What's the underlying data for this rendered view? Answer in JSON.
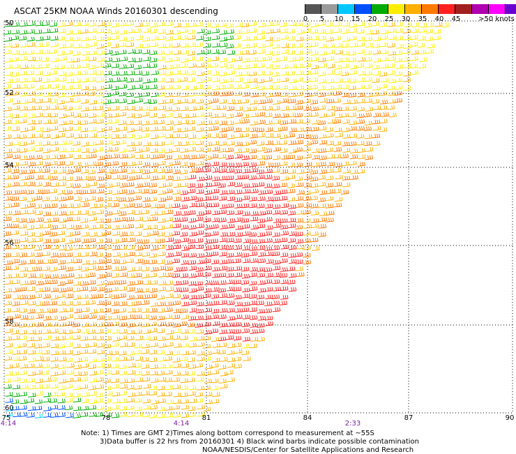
{
  "title": "ASCAT 25KM NOAA Winds 20160301 descending",
  "legend": {
    "labels": [
      "0",
      "5",
      "10",
      "15",
      "20",
      "25",
      "30",
      "35",
      "40",
      "45",
      ">50 knots"
    ],
    "colors": [
      "#555555",
      "#9a9a9a",
      "#00c8ff",
      "#0050ff",
      "#00aa00",
      "#ffee00",
      "#ffb000",
      "#ff7a00",
      "#ff2020",
      "#a02020",
      "#b000b0",
      "#ff00ff",
      "#6a00d0"
    ]
  },
  "lat_labels": [
    "50",
    "52",
    "54",
    "56",
    "58",
    "60"
  ],
  "lon_labels": [
    "75",
    "78",
    "81",
    "84",
    "87",
    "90"
  ],
  "time_labels": [
    "4:14",
    "4:14",
    "2:33"
  ],
  "notes": [
    "Note: 1) Times are GMT 2)Times along bottom correspond to measurement at ~55S",
    "3)Data buffer is 22 hrs from 20160301 4) Black wind barbs indicate possible contamination",
    "NOAA/NESDIS/Center for Satellite Applications and Research"
  ]
}
